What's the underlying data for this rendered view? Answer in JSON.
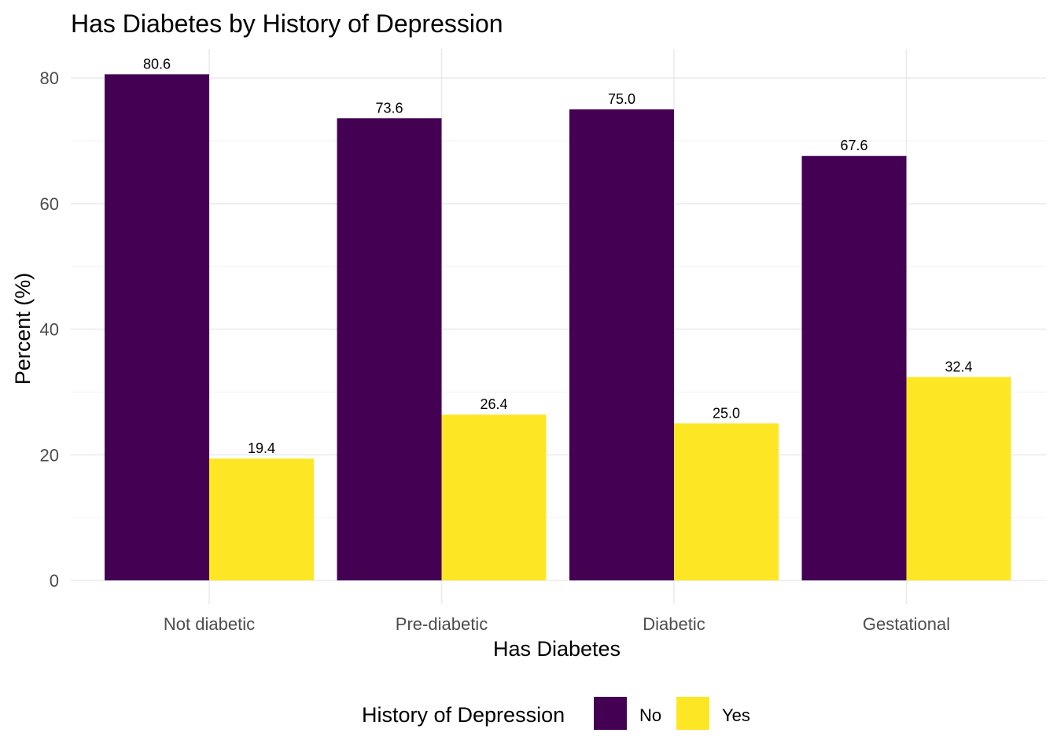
{
  "chart_data": {
    "type": "bar",
    "title": "Has Diabetes by History of Depression",
    "xlabel": "Has Diabetes",
    "ylabel": "Percent (%)",
    "categories": [
      "Not diabetic",
      "Pre-diabetic",
      "Diabetic",
      "Gestational"
    ],
    "series": [
      {
        "name": "No",
        "color": "#440154",
        "values": [
          80.6,
          73.6,
          75.0,
          67.6
        ],
        "labels": [
          "80.6",
          "73.6",
          "75.0",
          "67.6"
        ]
      },
      {
        "name": "Yes",
        "color": "#FDE725",
        "values": [
          19.4,
          26.4,
          25.0,
          32.4
        ],
        "labels": [
          "19.4",
          "26.4",
          "25.0",
          "32.4"
        ]
      }
    ],
    "ylim": [
      0,
      84.6
    ],
    "yticks": [
      0,
      20,
      40,
      60,
      80
    ],
    "ytick_labels": [
      "0",
      "20",
      "40",
      "60",
      "80"
    ],
    "grid": true,
    "legend_title": "History of Depression",
    "legend_position": "bottom"
  }
}
